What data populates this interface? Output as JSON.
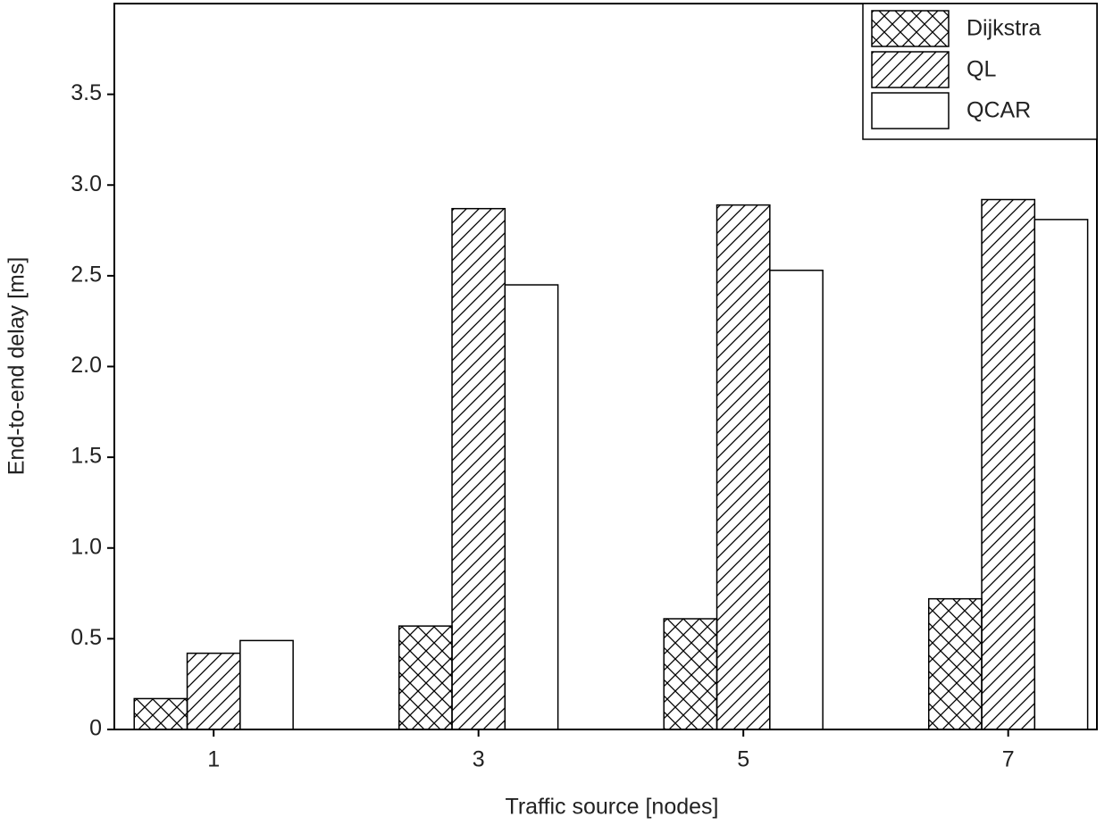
{
  "chart_data": {
    "type": "bar",
    "x_label": "Traffic source [nodes]",
    "y_label": "End-to-end delay [ms]",
    "x": [
      1,
      3,
      5,
      7
    ],
    "xlim": [
      0.25,
      7.67
    ],
    "xticks": [
      1,
      3,
      5,
      7
    ],
    "ylim": [
      0,
      4
    ],
    "yticks": [
      0,
      0.5,
      {
        "value": 1,
        "label": "1.0"
      },
      1.5,
      {
        "value": 2,
        "label": "2.0"
      },
      2.5,
      {
        "value": 3,
        "label": "3.0"
      },
      3.5
    ],
    "legend": "top-right",
    "series": [
      {
        "name": "Dijkstra",
        "color": "#000000",
        "pattern": "crosshatch",
        "values": [
          0.17,
          0.57,
          0.61,
          0.72
        ]
      },
      {
        "name": "QL",
        "color": "#000000",
        "pattern": "diagonal",
        "values": [
          0.42,
          2.87,
          2.89,
          2.92
        ]
      },
      {
        "name": "QCAR",
        "color": "#000000",
        "pattern": "none",
        "values": [
          0.49,
          2.45,
          2.53,
          2.81
        ]
      }
    ]
  }
}
